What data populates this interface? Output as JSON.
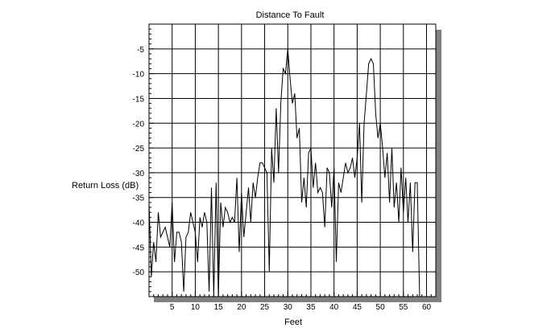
{
  "chart_data": {
    "type": "line",
    "title": "Distance To Fault",
    "xlabel": "Feet",
    "ylabel": "Return Loss (dB)",
    "xlim": [
      0,
      62
    ],
    "ylim": [
      -55,
      0
    ],
    "xticks": [
      5,
      10,
      15,
      20,
      25,
      30,
      35,
      40,
      45,
      50,
      55,
      60
    ],
    "yticks": [
      -5,
      -10,
      -15,
      -20,
      -25,
      -30,
      -35,
      -40,
      -45,
      -50
    ],
    "grid": true,
    "series": [
      {
        "color": "#000000",
        "points": [
          [
            0.0,
            -36
          ],
          [
            0.5,
            -51
          ],
          [
            1.0,
            -44
          ],
          [
            1.5,
            -48
          ],
          [
            2.0,
            -38
          ],
          [
            2.5,
            -43
          ],
          [
            3.0,
            -42
          ],
          [
            3.5,
            -41
          ],
          [
            4.0,
            -43
          ],
          [
            4.5,
            -45
          ],
          [
            5.0,
            -36
          ],
          [
            5.5,
            -48
          ],
          [
            6.0,
            -42
          ],
          [
            6.5,
            -42
          ],
          [
            7.0,
            -44
          ],
          [
            7.5,
            -54
          ],
          [
            8.0,
            -43
          ],
          [
            8.5,
            -42
          ],
          [
            9.0,
            -38
          ],
          [
            9.5,
            -40
          ],
          [
            10.0,
            -42
          ],
          [
            10.5,
            -48
          ],
          [
            11.0,
            -39
          ],
          [
            11.5,
            -41
          ],
          [
            12.0,
            -38
          ],
          [
            12.5,
            -40
          ],
          [
            13.0,
            -54
          ],
          [
            13.5,
            -33
          ],
          [
            14.0,
            -55
          ],
          [
            14.5,
            -32
          ],
          [
            15.0,
            -55
          ],
          [
            15.5,
            -36
          ],
          [
            16.0,
            -41
          ],
          [
            16.5,
            -37
          ],
          [
            17.0,
            -38
          ],
          [
            17.5,
            -40
          ],
          [
            18.0,
            -39
          ],
          [
            18.5,
            -40
          ],
          [
            19.0,
            -31
          ],
          [
            19.5,
            -46
          ],
          [
            20.0,
            -34
          ],
          [
            20.5,
            -43
          ],
          [
            21.0,
            -38
          ],
          [
            21.5,
            -33
          ],
          [
            22.0,
            -40
          ],
          [
            22.5,
            -32
          ],
          [
            23.0,
            -35
          ],
          [
            23.5,
            -31
          ],
          [
            24.0,
            -28
          ],
          [
            24.5,
            -28
          ],
          [
            25.0,
            -29
          ],
          [
            25.5,
            -30
          ],
          [
            26.0,
            -50
          ],
          [
            26.5,
            -25
          ],
          [
            27.0,
            -32
          ],
          [
            27.5,
            -17
          ],
          [
            28.0,
            -30
          ],
          [
            28.5,
            -16
          ],
          [
            29.0,
            -9
          ],
          [
            29.5,
            -10
          ],
          [
            30.0,
            -5
          ],
          [
            30.5,
            -11
          ],
          [
            31.0,
            -16
          ],
          [
            31.5,
            -14
          ],
          [
            32.0,
            -23
          ],
          [
            32.5,
            -21
          ],
          [
            33.0,
            -36
          ],
          [
            33.5,
            -31
          ],
          [
            34.0,
            -37
          ],
          [
            34.5,
            -26
          ],
          [
            35.0,
            -25
          ],
          [
            35.5,
            -33
          ],
          [
            36.0,
            -28
          ],
          [
            36.5,
            -34
          ],
          [
            37.0,
            -33
          ],
          [
            37.5,
            -34
          ],
          [
            38.0,
            -41
          ],
          [
            38.5,
            -29
          ],
          [
            39.0,
            -30
          ],
          [
            39.5,
            -37
          ],
          [
            40.0,
            -29
          ],
          [
            40.5,
            -48
          ],
          [
            41.0,
            -32
          ],
          [
            41.5,
            -34
          ],
          [
            42.0,
            -31
          ],
          [
            42.5,
            -28
          ],
          [
            43.0,
            -30
          ],
          [
            43.5,
            -29
          ],
          [
            44.0,
            -27
          ],
          [
            44.5,
            -31
          ],
          [
            45.0,
            -27
          ],
          [
            45.5,
            -20
          ],
          [
            46.0,
            -36
          ],
          [
            46.5,
            -20
          ],
          [
            47.0,
            -14
          ],
          [
            47.5,
            -8
          ],
          [
            48.0,
            -7
          ],
          [
            48.5,
            -8
          ],
          [
            49.0,
            -18
          ],
          [
            49.5,
            -23
          ],
          [
            50.0,
            -20
          ],
          [
            50.5,
            -25
          ],
          [
            51.0,
            -31
          ],
          [
            51.5,
            -26
          ],
          [
            52.0,
            -36
          ],
          [
            52.5,
            -25
          ],
          [
            53.0,
            -37
          ],
          [
            53.5,
            -32
          ],
          [
            54.0,
            -40
          ],
          [
            54.5,
            -29
          ],
          [
            55.0,
            -38
          ],
          [
            55.5,
            -31
          ],
          [
            56.0,
            -40
          ],
          [
            56.5,
            -32
          ],
          [
            57.0,
            -46
          ],
          [
            57.5,
            -32
          ],
          [
            58.0,
            -32
          ],
          [
            58.5,
            -55
          ]
        ]
      }
    ]
  }
}
